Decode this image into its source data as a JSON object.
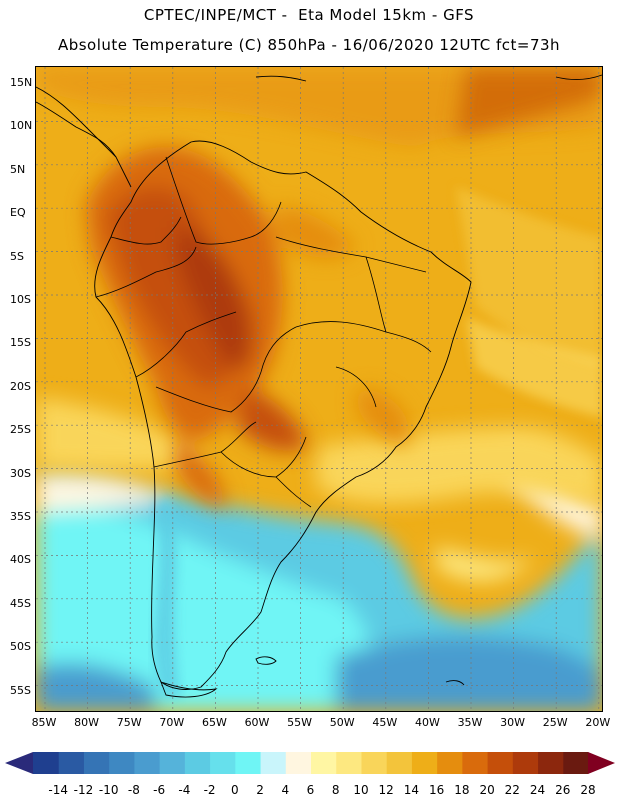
{
  "header": {
    "line1": "CPTEC/INPE/MCT -  Eta Model 15km - GFS",
    "line2": "Absolute Temperature (C) 850hPa - 16/06/2020 12UTC fct=73h"
  },
  "map": {
    "lat_labels": [
      "15N",
      "10N",
      "5N",
      "EQ",
      "5S",
      "10S",
      "15S",
      "20S",
      "25S",
      "30S",
      "35S",
      "40S",
      "45S",
      "50S",
      "55S"
    ],
    "lon_labels": [
      "85W",
      "80W",
      "75W",
      "70W",
      "65W",
      "60W",
      "55W",
      "50W",
      "45W",
      "40W",
      "35W",
      "30W",
      "25W",
      "20W"
    ]
  },
  "colorbar": {
    "labels": [
      "-14",
      "-12",
      "-10",
      "-8",
      "-6",
      "-4",
      "-2",
      "0",
      "2",
      "4",
      "6",
      "8",
      "10",
      "12",
      "14",
      "16",
      "18",
      "20",
      "22",
      "24",
      "26",
      "28"
    ],
    "colors": [
      "#1f3f8f",
      "#2a5aa3",
      "#3574b5",
      "#3e88c2",
      "#4a9ccf",
      "#55b3da",
      "#5ccbe3",
      "#66e0ec",
      "#6ff5f5",
      "#c9f5fb",
      "#fff6e0",
      "#fff6a3",
      "#fde880",
      "#f9d55a",
      "#f3c43b",
      "#eeae18",
      "#e58d0e",
      "#d96b0c",
      "#c54f0a",
      "#ad3a0b",
      "#8c270d",
      "#6a1a10"
    ],
    "left_arrow_color": "#2a2a7a",
    "right_arrow_color": "#800020"
  }
}
